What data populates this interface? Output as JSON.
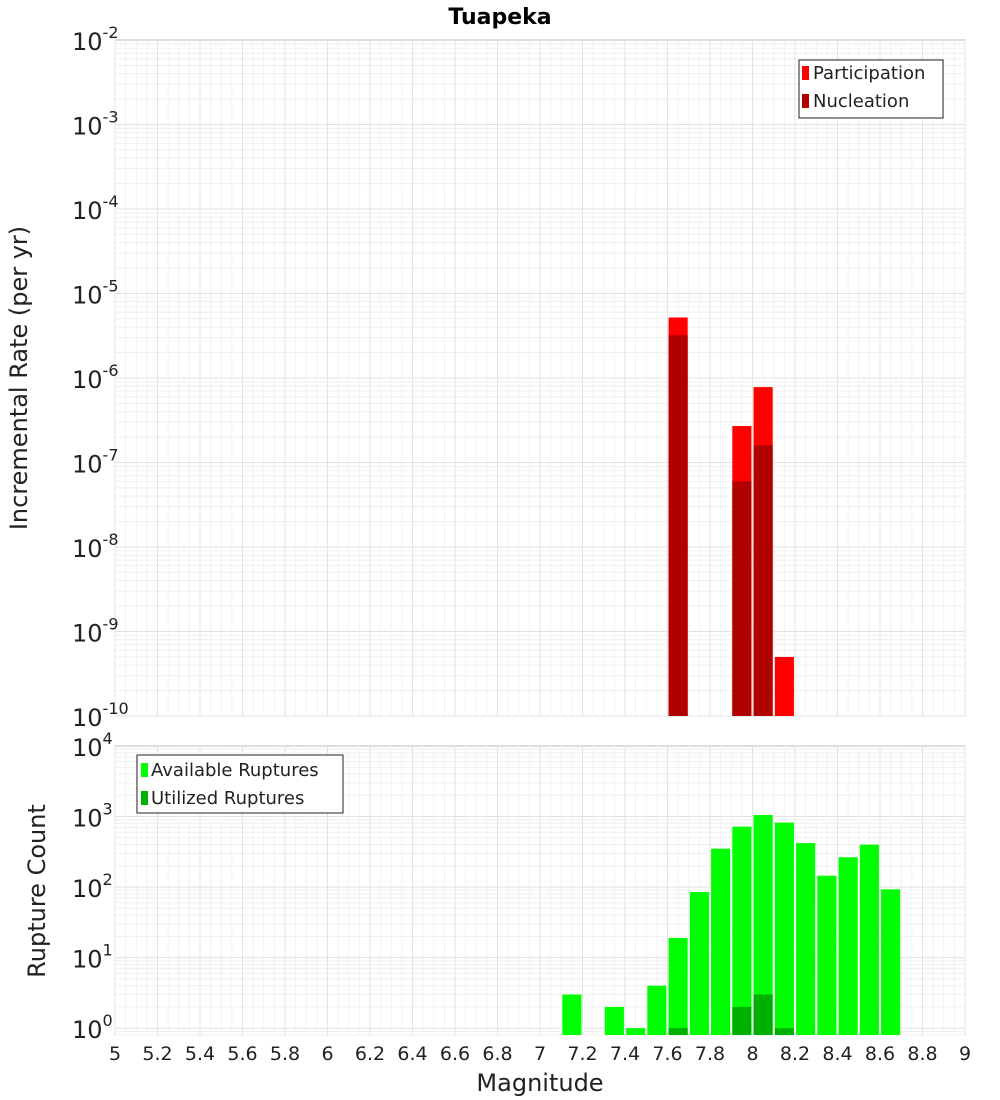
{
  "chart_data": [
    {
      "type": "bar",
      "title": "Tuapeka",
      "xlabel": "",
      "ylabel": "Incremental Rate (per yr)",
      "yscale": "log",
      "ylim": [
        1e-10,
        0.01
      ],
      "xlim": [
        5,
        9
      ],
      "y_ticks": [
        {
          "base": "10",
          "exp": "-2"
        },
        {
          "base": "10",
          "exp": "-3"
        },
        {
          "base": "10",
          "exp": "-4"
        },
        {
          "base": "10",
          "exp": "-5"
        },
        {
          "base": "10",
          "exp": "-6"
        },
        {
          "base": "10",
          "exp": "-7"
        },
        {
          "base": "10",
          "exp": "-8"
        },
        {
          "base": "10",
          "exp": "-9"
        },
        {
          "base": "10",
          "exp": "-10"
        }
      ],
      "legend_position": "top-right",
      "grid": true,
      "bar_width": 0.09,
      "series": [
        {
          "name": "Participation",
          "color": "#ff0000",
          "points": [
            {
              "x": 7.65,
              "y": 5.2e-06
            },
            {
              "x": 7.95,
              "y": 2.7e-07
            },
            {
              "x": 8.05,
              "y": 7.8e-07
            },
            {
              "x": 8.15,
              "y": 5e-10
            }
          ]
        },
        {
          "name": "Nucleation",
          "color": "#b00000",
          "points": [
            {
              "x": 7.65,
              "y": 3.2e-06
            },
            {
              "x": 7.95,
              "y": 6e-08
            },
            {
              "x": 8.05,
              "y": 1.6e-07
            }
          ]
        }
      ]
    },
    {
      "type": "bar",
      "title": "",
      "xlabel": "Magnitude",
      "ylabel": "Rupture Count",
      "yscale": "log",
      "ylim": [
        0.8,
        10000
      ],
      "xlim": [
        5,
        9
      ],
      "x_ticks": [
        "5",
        "5.2",
        "5.4",
        "5.6",
        "5.8",
        "6",
        "6.2",
        "6.4",
        "6.6",
        "6.8",
        "7",
        "7.2",
        "7.4",
        "7.6",
        "7.8",
        "8",
        "8.2",
        "8.4",
        "8.6",
        "8.8",
        "9"
      ],
      "y_ticks": [
        {
          "base": "10",
          "exp": "4"
        },
        {
          "base": "10",
          "exp": "3"
        },
        {
          "base": "10",
          "exp": "2"
        },
        {
          "base": "10",
          "exp": "1"
        },
        {
          "base": "10",
          "exp": "0"
        }
      ],
      "legend_position": "top-left",
      "grid": true,
      "bar_width": 0.09,
      "series": [
        {
          "name": "Available Ruptures",
          "color": "#00ff00",
          "points": [
            {
              "x": 7.15,
              "y": 3
            },
            {
              "x": 7.35,
              "y": 2
            },
            {
              "x": 7.45,
              "y": 1
            },
            {
              "x": 7.55,
              "y": 4
            },
            {
              "x": 7.65,
              "y": 19
            },
            {
              "x": 7.75,
              "y": 85
            },
            {
              "x": 7.85,
              "y": 350
            },
            {
              "x": 7.95,
              "y": 720
            },
            {
              "x": 8.05,
              "y": 1050
            },
            {
              "x": 8.15,
              "y": 820
            },
            {
              "x": 8.25,
              "y": 420
            },
            {
              "x": 8.35,
              "y": 145
            },
            {
              "x": 8.45,
              "y": 265
            },
            {
              "x": 8.55,
              "y": 400
            },
            {
              "x": 8.65,
              "y": 93
            }
          ]
        },
        {
          "name": "Utilized Ruptures",
          "color": "#00b000",
          "points": [
            {
              "x": 7.65,
              "y": 1
            },
            {
              "x": 7.95,
              "y": 2
            },
            {
              "x": 8.05,
              "y": 3
            },
            {
              "x": 8.15,
              "y": 1
            }
          ]
        }
      ]
    }
  ]
}
